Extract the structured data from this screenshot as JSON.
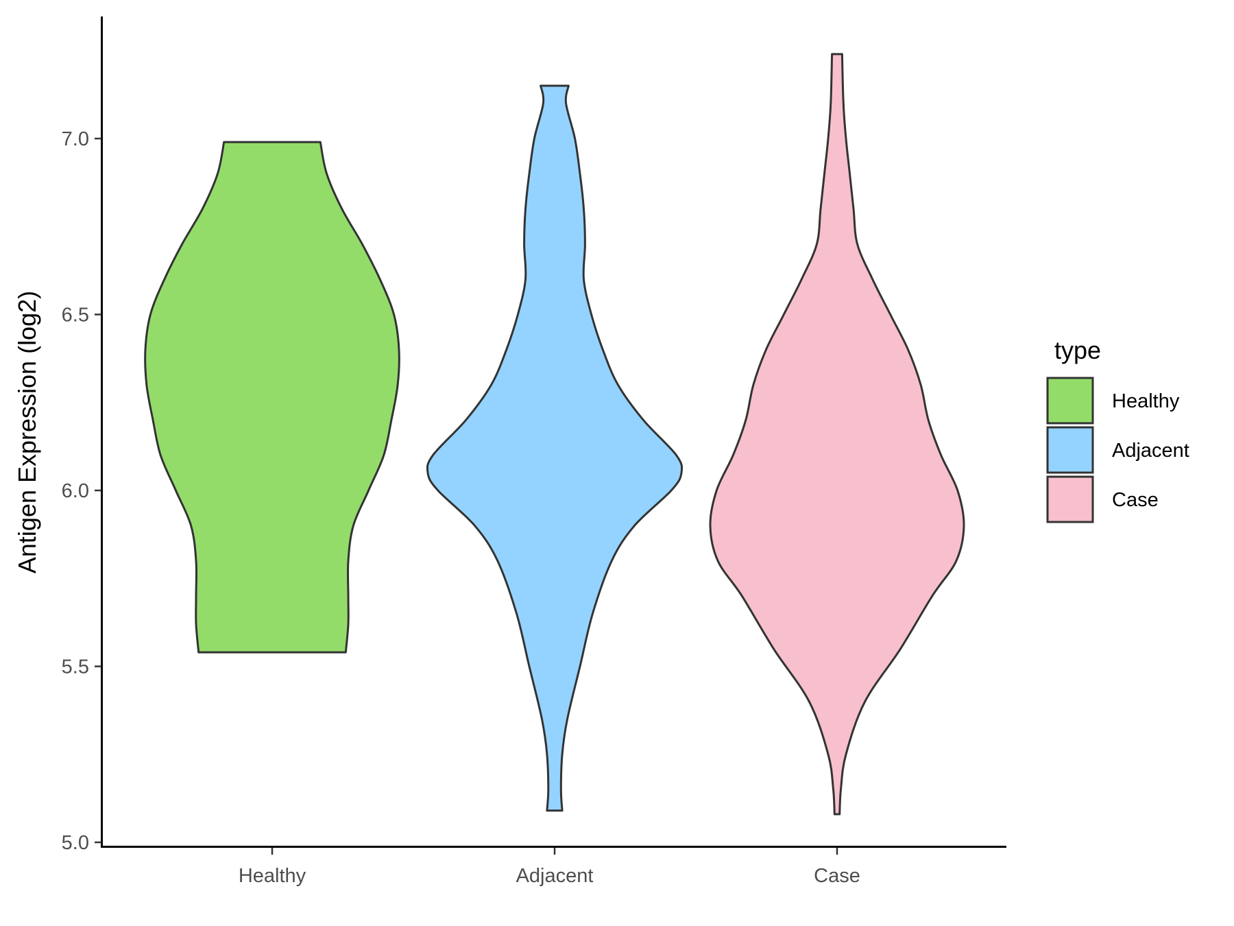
{
  "chart_data": {
    "type": "violin",
    "xlabel": "",
    "ylabel": "Antigen Expression (log2)",
    "ylim": [
      5.0,
      7.3
    ],
    "yticks": [
      "5.0",
      "5.5",
      "6.0",
      "6.5",
      "7.0"
    ],
    "categories": [
      "Healthy",
      "Adjacent",
      "Case"
    ],
    "grid": false,
    "legend": {
      "title": "type",
      "position": "right",
      "entries": [
        "Healthy",
        "Adjacent",
        "Case"
      ]
    },
    "colors": {
      "Healthy": "#93dc6a",
      "Adjacent": "#94d3ff",
      "Case": "#f7c0cc",
      "outline": "#333333",
      "axis": "#000000"
    },
    "series": [
      {
        "category": "Healthy",
        "min": 5.54,
        "max": 6.99,
        "density_profile": [
          [
            5.54,
            0.58
          ],
          [
            5.62,
            0.6
          ],
          [
            5.7,
            0.6
          ],
          [
            5.8,
            0.6
          ],
          [
            5.9,
            0.64
          ],
          [
            6.0,
            0.76
          ],
          [
            6.1,
            0.88
          ],
          [
            6.2,
            0.94
          ],
          [
            6.3,
            0.99
          ],
          [
            6.4,
            1.0
          ],
          [
            6.5,
            0.96
          ],
          [
            6.6,
            0.85
          ],
          [
            6.7,
            0.71
          ],
          [
            6.8,
            0.55
          ],
          [
            6.9,
            0.43
          ],
          [
            6.99,
            0.38
          ]
        ]
      },
      {
        "category": "Adjacent",
        "min": 5.09,
        "max": 7.15,
        "density_profile": [
          [
            5.09,
            0.06
          ],
          [
            5.15,
            0.05
          ],
          [
            5.25,
            0.06
          ],
          [
            5.35,
            0.1
          ],
          [
            5.5,
            0.2
          ],
          [
            5.65,
            0.3
          ],
          [
            5.8,
            0.45
          ],
          [
            5.9,
            0.63
          ],
          [
            6.0,
            0.92
          ],
          [
            6.05,
            1.0
          ],
          [
            6.1,
            0.96
          ],
          [
            6.2,
            0.7
          ],
          [
            6.3,
            0.5
          ],
          [
            6.4,
            0.38
          ],
          [
            6.5,
            0.29
          ],
          [
            6.6,
            0.23
          ],
          [
            6.7,
            0.24
          ],
          [
            6.8,
            0.23
          ],
          [
            6.9,
            0.2
          ],
          [
            7.0,
            0.16
          ],
          [
            7.1,
            0.09
          ],
          [
            7.15,
            0.11
          ]
        ]
      },
      {
        "category": "Case",
        "min": 5.08,
        "max": 7.24,
        "density_profile": [
          [
            5.08,
            0.02
          ],
          [
            5.15,
            0.03
          ],
          [
            5.25,
            0.07
          ],
          [
            5.4,
            0.22
          ],
          [
            5.55,
            0.5
          ],
          [
            5.7,
            0.75
          ],
          [
            5.8,
            0.94
          ],
          [
            5.9,
            1.0
          ],
          [
            6.0,
            0.95
          ],
          [
            6.1,
            0.82
          ],
          [
            6.2,
            0.72
          ],
          [
            6.3,
            0.66
          ],
          [
            6.4,
            0.56
          ],
          [
            6.5,
            0.42
          ],
          [
            6.6,
            0.28
          ],
          [
            6.7,
            0.16
          ],
          [
            6.8,
            0.13
          ],
          [
            6.9,
            0.1
          ],
          [
            7.0,
            0.07
          ],
          [
            7.1,
            0.05
          ],
          [
            7.24,
            0.04
          ]
        ]
      }
    ]
  }
}
